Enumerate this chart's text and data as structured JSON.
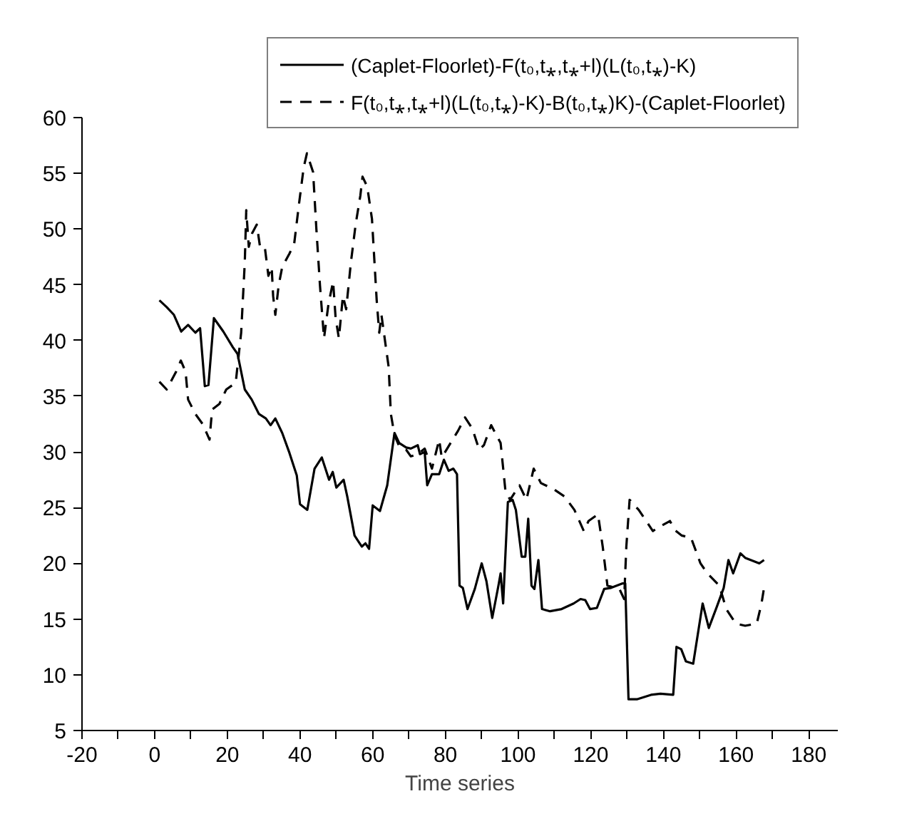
{
  "chart_data": {
    "type": "line",
    "xlabel": "Time series",
    "xlim": [
      -20,
      188
    ],
    "ylim": [
      5,
      60
    ],
    "xticks": [
      -20,
      {
        "value": -10,
        "label": null
      },
      0,
      {
        "value": 10,
        "label": null
      },
      20,
      {
        "value": 30,
        "label": null
      },
      40,
      {
        "value": 50,
        "label": null
      },
      60,
      {
        "value": 70,
        "label": null
      },
      80,
      {
        "value": 90,
        "label": null
      },
      100,
      {
        "value": 110,
        "label": null
      },
      120,
      {
        "value": 130,
        "label": null
      },
      140,
      {
        "value": 150,
        "label": null
      },
      160,
      {
        "value": 170,
        "label": null
      },
      180
    ],
    "yticks": [
      5,
      10,
      15,
      20,
      25,
      30,
      35,
      40,
      45,
      50,
      55,
      60
    ],
    "grid": false,
    "legend": "top",
    "marker": "none",
    "series": [
      {
        "name": "(Caplet-Floorlet)-F(t₀,t⁎,t⁎+l)(L(t₀,t⁎)-K)",
        "color": "#000000",
        "line_style": "solid",
        "x": [
          1.3,
          3.3,
          5.3,
          7.3,
          9.2,
          11.2,
          12.5,
          13.8,
          14.8,
          16.3,
          18.9,
          21.5,
          22.8,
          24.8,
          26.7,
          28.7,
          30.6,
          31.9,
          33.2,
          35.1,
          37.1,
          39.1,
          40,
          42,
          44,
          46,
          48,
          49,
          50,
          52,
          53,
          55,
          57,
          58,
          59,
          60,
          62,
          64,
          66,
          67.3,
          69.2,
          70.5,
          72.4,
          73,
          74.3,
          75,
          76.3,
          78.3,
          79.6,
          80.9,
          82.2,
          83.2,
          83.9,
          84.8,
          86.1,
          88.1,
          90,
          91.3,
          92.9,
          94.6,
          95.2,
          95.9,
          97.2,
          98.5,
          99.4,
          101,
          102,
          102.8,
          103.7,
          104.5,
          105.6,
          106.6,
          108.8,
          112,
          115.3,
          117.2,
          118.5,
          119.8,
          121.7,
          123.7,
          125.6,
          128.8,
          129.5,
          130.4,
          132.7,
          136.6,
          139.2,
          142.7,
          143.6,
          144.9,
          146.2,
          148.2,
          150.8,
          152.5,
          154.7,
          156.6,
          157.9,
          159.2,
          161.2,
          162.5,
          166.4,
          167.7
        ],
        "values": [
          43.6,
          43.0,
          42.3,
          40.8,
          41.4,
          40.7,
          41.1,
          35.9,
          36.0,
          42.0,
          40.8,
          39.4,
          38.8,
          35.6,
          34.7,
          33.4,
          33.0,
          32.4,
          33.0,
          31.7,
          29.9,
          27.9,
          25.3,
          24.8,
          28.5,
          29.5,
          27.5,
          28.2,
          26.8,
          27.5,
          26.0,
          22.5,
          21.5,
          21.8,
          21.3,
          25.2,
          24.7,
          27.0,
          31.7,
          30.8,
          30.4,
          30.3,
          30.6,
          29.8,
          30.0,
          27.0,
          28.0,
          28.0,
          29.3,
          28.3,
          28.5,
          28.0,
          18.0,
          17.8,
          15.9,
          17.7,
          20.0,
          18.4,
          15.1,
          18.0,
          19.1,
          16.4,
          25.5,
          25.7,
          24.8,
          20.6,
          20.6,
          24.0,
          18.0,
          17.7,
          20.3,
          15.9,
          15.7,
          15.9,
          16.4,
          16.8,
          16.7,
          15.9,
          16.0,
          17.7,
          17.8,
          18.2,
          18.2,
          7.8,
          7.8,
          8.2,
          8.3,
          8.2,
          12.5,
          12.3,
          11.2,
          11.0,
          16.4,
          14.2,
          16.1,
          17.8,
          20.3,
          19.1,
          20.9,
          20.5,
          20.0,
          20.3
        ]
      },
      {
        "name": "F(t₀,t⁎,t⁎+l)(L(t₀,t⁎)-K)-B(t₀,t⁎)K)-(Caplet-Floorlet)",
        "color": "#000000",
        "line_style": "dashed",
        "x": [
          1.3,
          3.3,
          5.9,
          7.2,
          8.5,
          9.2,
          11.2,
          13.2,
          15.1,
          15.8,
          17.8,
          19.7,
          22.3,
          23.8,
          24.8,
          25.2,
          25.9,
          26.8,
          28.1,
          29,
          30.3,
          31.3,
          32.2,
          32.6,
          33.2,
          34.1,
          35.1,
          37.1,
          38.4,
          39.7,
          41,
          41.9,
          43.6,
          44.5,
          45.5,
          46.6,
          47.8,
          49.1,
          49.8,
          50.7,
          51.8,
          52.7,
          54,
          55.3,
          56.6,
          57.2,
          58.5,
          59.8,
          61.1,
          61.8,
          62.4,
          64.4,
          65,
          66,
          67.3,
          69.2,
          70.5,
          72.4,
          74.3,
          76.3,
          78.3,
          79,
          83.5,
          85.4,
          87.4,
          89.3,
          90.6,
          92.6,
          95.2,
          96.5,
          97.8,
          100.4,
          102.3,
          104.3,
          106.3,
          109.6,
          112.8,
          115.5,
          118.1,
          119.4,
          122,
          123.3,
          124.6,
          127.9,
          129.2,
          129.8,
          130.7,
          133.2,
          137.1,
          138.5,
          141.8,
          143.1,
          145,
          147.6,
          150.2,
          152.1,
          155.4,
          157.3,
          159.9,
          162.5,
          165.7,
          167,
          167.7
        ],
        "values": [
          36.3,
          35.6,
          37.2,
          38.2,
          37.2,
          34.7,
          33.4,
          32.5,
          31.1,
          33.8,
          34.3,
          35.6,
          36.2,
          40.7,
          47.0,
          51.7,
          48.4,
          49.6,
          50.4,
          48.4,
          48.4,
          45.8,
          46.6,
          44.0,
          42.3,
          44.9,
          46.6,
          47.8,
          48.7,
          52.2,
          55.5,
          56.8,
          55.1,
          50.0,
          44.9,
          40.2,
          43.2,
          45.3,
          42.0,
          40.2,
          44.0,
          42.8,
          47.0,
          50.4,
          53.0,
          54.7,
          53.8,
          50.9,
          43.6,
          40.7,
          42.3,
          37.6,
          33.4,
          31.5,
          30.5,
          30.2,
          29.6,
          29.8,
          30.3,
          28.5,
          31.1,
          29.5,
          31.9,
          33.1,
          32.1,
          30.2,
          30.6,
          32.4,
          30.8,
          26.6,
          25.7,
          27.0,
          25.7,
          28.5,
          27.2,
          26.7,
          26.0,
          24.8,
          22.9,
          23.8,
          24.4,
          21.5,
          18.0,
          17.7,
          16.8,
          21.5,
          25.7,
          24.8,
          22.9,
          23.2,
          23.8,
          23.0,
          22.5,
          22.3,
          20.0,
          19.1,
          18.0,
          15.9,
          14.6,
          14.4,
          14.6,
          16.4,
          17.8
        ]
      }
    ]
  }
}
